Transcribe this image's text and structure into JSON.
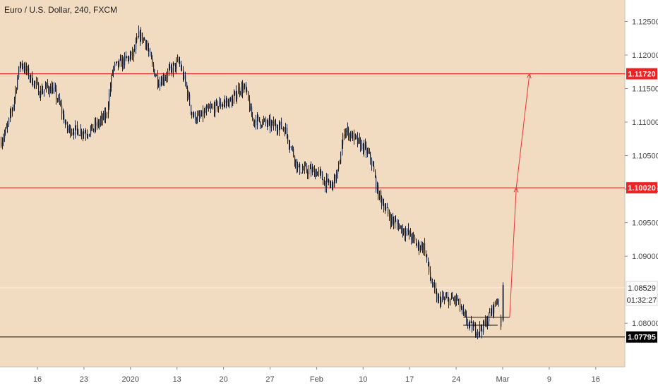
{
  "title": "Euro / U.S. Dollar, 240, FXCM",
  "colors": {
    "plot_bg": "#f2dcc1",
    "axis_bg": "#ffffff",
    "grid": "#e7cdb0",
    "candle": "#1c2236",
    "resistance": "#ee2222",
    "support": "#000000",
    "current_price_line": "#f6efe5",
    "projection": "#ee3333"
  },
  "chart_data": {
    "type": "candlestick",
    "x_ticks": [
      "16",
      "23",
      "2020",
      "13",
      "20",
      "27",
      "Feb",
      "10",
      "17",
      "24",
      "Mar",
      "9",
      "16"
    ],
    "y_ticks": [
      "1.12500",
      "1.12000",
      "1.11500",
      "1.11000",
      "1.10500",
      "1.10000",
      "1.09500",
      "1.09000",
      "1.08000"
    ],
    "ylim": [
      1.0735,
      1.1282
    ],
    "grid": false,
    "price_path": [
      [
        "2019-12-10",
        1.107
      ],
      [
        "2019-12-11",
        1.109
      ],
      [
        "2019-12-12",
        1.113
      ],
      [
        "2019-12-13",
        1.119
      ],
      [
        "2019-12-16",
        1.1145
      ],
      [
        "2019-12-17",
        1.1152
      ],
      [
        "2019-12-18",
        1.1148
      ],
      [
        "2019-12-19",
        1.1125
      ],
      [
        "2019-12-20",
        1.109
      ],
      [
        "2019-12-23",
        1.1085
      ],
      [
        "2019-12-24",
        1.109
      ],
      [
        "2019-12-26",
        1.111
      ],
      [
        "2019-12-27",
        1.118
      ],
      [
        "2019-12-30",
        1.12
      ],
      [
        "2019-12-31",
        1.123
      ],
      [
        "2020-01-01",
        1.122
      ],
      [
        "2020-01-02",
        1.118
      ],
      [
        "2020-01-03",
        1.116
      ],
      [
        "2020-01-06",
        1.119
      ],
      [
        "2020-01-07",
        1.1155
      ],
      [
        "2020-01-08",
        1.111
      ],
      [
        "2020-01-09",
        1.1105
      ],
      [
        "2020-01-10",
        1.1115
      ],
      [
        "2020-01-13",
        1.113
      ],
      [
        "2020-01-14",
        1.113
      ],
      [
        "2020-01-15",
        1.115
      ],
      [
        "2020-01-16",
        1.115
      ],
      [
        "2020-01-17",
        1.1105
      ],
      [
        "2020-01-20",
        1.1095
      ],
      [
        "2020-01-21",
        1.1095
      ],
      [
        "2020-01-22",
        1.109
      ],
      [
        "2020-01-23",
        1.106
      ],
      [
        "2020-01-24",
        1.103
      ],
      [
        "2020-01-27",
        1.1025
      ],
      [
        "2020-01-28",
        1.101
      ],
      [
        "2020-01-29",
        1.1005
      ],
      [
        "2020-01-30",
        1.1025
      ],
      [
        "2020-01-31",
        1.109
      ],
      [
        "2020-02-03",
        1.106
      ],
      [
        "2020-02-04",
        1.1045
      ],
      [
        "2020-02-05",
        1.0995
      ],
      [
        "2020-02-06",
        1.0975
      ],
      [
        "2020-02-07",
        1.0955
      ],
      [
        "2020-02-10",
        1.093
      ],
      [
        "2020-02-11",
        1.0915
      ],
      [
        "2020-02-12",
        1.0915
      ],
      [
        "2020-02-13",
        1.0865
      ],
      [
        "2020-02-14",
        1.0835
      ],
      [
        "2020-02-17",
        1.0835
      ],
      [
        "2020-02-18",
        1.081
      ],
      [
        "2020-02-19",
        1.0795
      ],
      [
        "2020-02-20",
        1.079
      ],
      [
        "2020-02-21",
        1.0795
      ],
      [
        "2020-02-24",
        1.0853
      ]
    ],
    "current_price": 1.08529,
    "countdown": "01:32:27",
    "horizontal_levels": [
      {
        "price": 1.1172,
        "label": "1.11720",
        "color": "#ee2222"
      },
      {
        "price": 1.1002,
        "label": "1.10020",
        "color": "#ee2222"
      },
      {
        "price": 1.07795,
        "label": "1.07795",
        "color": "#000000"
      }
    ],
    "range_box": {
      "x1": "2020-02-18",
      "x2": "2020-02-25",
      "top": 1.0809,
      "bottom": 1.0797
    },
    "projection": [
      [
        "2020-02-25",
        1.0809
      ],
      [
        "2020-02-26",
        1.1002
      ],
      [
        "2020-02-28",
        1.1172
      ]
    ],
    "axis_labels": {
      "x": "",
      "y": ""
    }
  }
}
